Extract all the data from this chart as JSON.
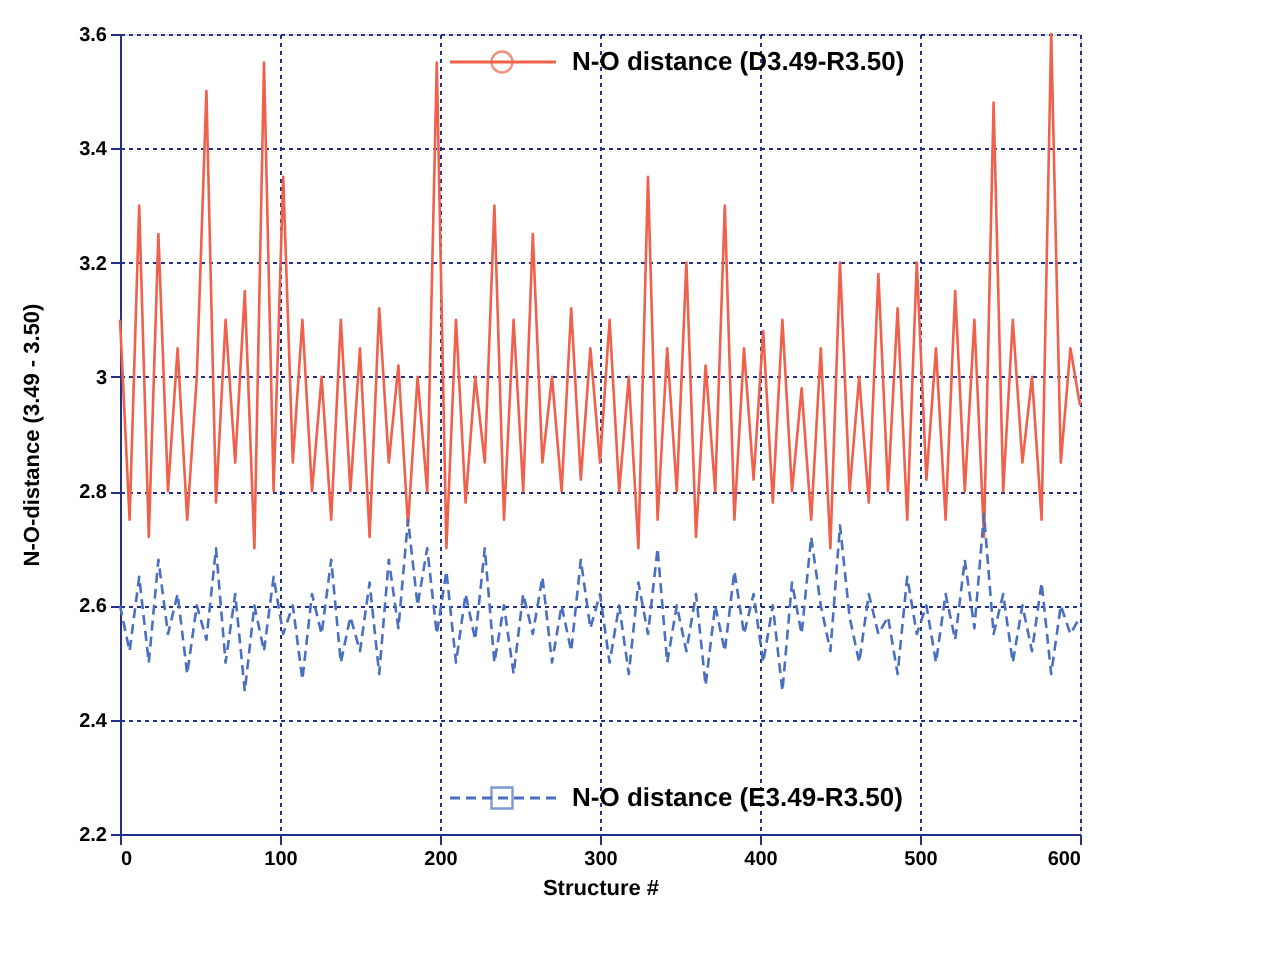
{
  "chart_data": {
    "type": "line",
    "xlabel": "Structure #",
    "ylabel": "N-O-distance (3.49 - 3.50)",
    "xlim": [
      0,
      600
    ],
    "xticks": [
      0,
      100,
      200,
      300,
      400,
      500,
      600
    ],
    "ylim": [
      2.2,
      3.6
    ],
    "yticks": [
      2.2,
      2.4,
      2.6,
      2.8,
      {
        "value": 3,
        "label": "3"
      },
      3.2,
      3.4,
      3.6
    ],
    "grid": true,
    "legend": "top",
    "x": [
      0,
      6,
      12,
      18,
      24,
      30,
      36,
      42,
      48,
      54,
      60,
      66,
      72,
      78,
      84,
      90,
      96,
      102,
      108,
      114,
      120,
      126,
      132,
      138,
      144,
      150,
      156,
      162,
      168,
      174,
      180,
      186,
      192,
      198,
      204,
      210,
      216,
      222,
      228,
      234,
      240,
      246,
      252,
      258,
      264,
      270,
      276,
      282,
      288,
      294,
      300,
      306,
      312,
      318,
      324,
      330,
      336,
      342,
      348,
      354,
      360,
      366,
      372,
      378,
      384,
      390,
      396,
      402,
      408,
      414,
      420,
      426,
      432,
      438,
      444,
      450,
      456,
      462,
      468,
      474,
      480,
      486,
      492,
      498,
      504,
      510,
      516,
      522,
      528,
      534,
      540,
      546,
      552,
      558,
      564,
      570,
      576,
      582,
      588,
      594,
      600
    ],
    "series": [
      {
        "name": "N-O distance (D3.49-R3.50)",
        "color": "#f0604a",
        "line_style": "solid",
        "values": [
          3.1,
          2.75,
          3.3,
          2.72,
          3.25,
          2.8,
          3.05,
          2.75,
          3.0,
          3.5,
          2.78,
          3.1,
          2.85,
          3.15,
          2.7,
          3.55,
          2.8,
          3.35,
          2.85,
          3.1,
          2.8,
          3.0,
          2.75,
          3.1,
          2.8,
          3.05,
          2.72,
          3.12,
          2.85,
          3.02,
          2.74,
          3.0,
          2.8,
          3.55,
          2.7,
          3.1,
          2.78,
          3.0,
          2.85,
          3.3,
          2.75,
          3.1,
          2.8,
          3.25,
          2.85,
          3.0,
          2.8,
          3.12,
          2.82,
          3.05,
          2.85,
          3.1,
          2.8,
          3.0,
          2.7,
          3.35,
          2.75,
          3.05,
          2.8,
          3.2,
          2.72,
          3.02,
          2.8,
          3.3,
          2.75,
          3.05,
          2.82,
          3.08,
          2.78,
          3.1,
          2.8,
          2.98,
          2.75,
          3.05,
          2.7,
          3.2,
          2.8,
          3.0,
          2.78,
          3.18,
          2.8,
          3.12,
          2.75,
          3.2,
          2.82,
          3.05,
          2.75,
          3.15,
          2.8,
          3.1,
          2.72,
          3.48,
          2.8,
          3.1,
          2.85,
          3.0,
          2.75,
          3.6,
          2.85,
          3.05,
          2.95
        ]
      },
      {
        "name": "N-O distance (E3.49-R3.50)",
        "color": "#4a6fc0",
        "line_style": "dashed",
        "values": [
          2.6,
          2.52,
          2.65,
          2.5,
          2.68,
          2.55,
          2.62,
          2.48,
          2.6,
          2.54,
          2.7,
          2.5,
          2.62,
          2.45,
          2.6,
          2.52,
          2.65,
          2.55,
          2.6,
          2.47,
          2.62,
          2.55,
          2.68,
          2.5,
          2.58,
          2.52,
          2.64,
          2.48,
          2.68,
          2.56,
          2.75,
          2.6,
          2.7,
          2.55,
          2.66,
          2.5,
          2.62,
          2.54,
          2.7,
          2.5,
          2.6,
          2.48,
          2.62,
          2.55,
          2.65,
          2.5,
          2.6,
          2.52,
          2.68,
          2.56,
          2.62,
          2.5,
          2.6,
          2.48,
          2.64,
          2.55,
          2.7,
          2.5,
          2.6,
          2.52,
          2.62,
          2.46,
          2.6,
          2.52,
          2.66,
          2.55,
          2.62,
          2.5,
          2.6,
          2.45,
          2.64,
          2.55,
          2.72,
          2.6,
          2.52,
          2.74,
          2.58,
          2.5,
          2.62,
          2.55,
          2.58,
          2.48,
          2.65,
          2.55,
          2.6,
          2.5,
          2.62,
          2.54,
          2.68,
          2.56,
          2.76,
          2.55,
          2.62,
          2.5,
          2.6,
          2.52,
          2.64,
          2.48,
          2.6,
          2.55,
          2.58
        ]
      }
    ]
  }
}
